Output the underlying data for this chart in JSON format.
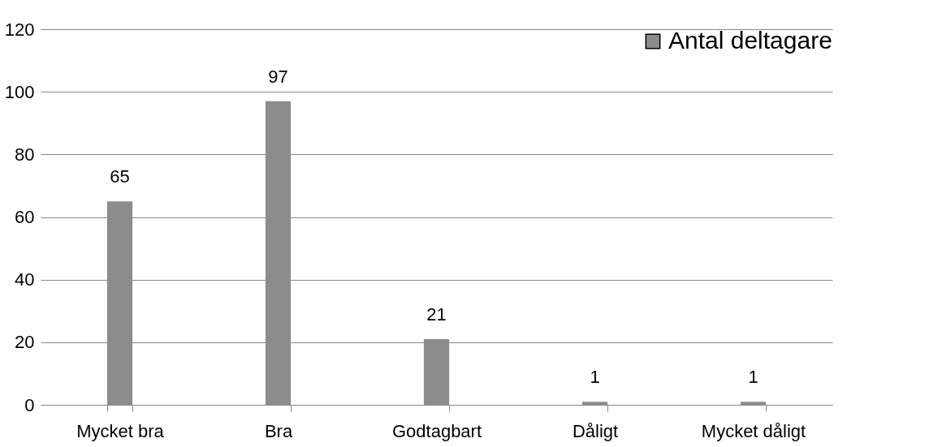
{
  "chart_data": {
    "type": "bar",
    "categories": [
      "Mycket bra",
      "Bra",
      "Godtagbart",
      "Dåligt",
      "Mycket dåligt"
    ],
    "series": [
      {
        "name": "Antal deltagare",
        "color": "#8c8c8c",
        "values": [
          65,
          97,
          21,
          1,
          1
        ]
      }
    ],
    "ylim": [
      0,
      120
    ],
    "yticks": [
      0,
      20,
      40,
      60,
      80,
      100,
      120
    ],
    "grid": "y",
    "legend": "top right",
    "data_labels": true
  }
}
